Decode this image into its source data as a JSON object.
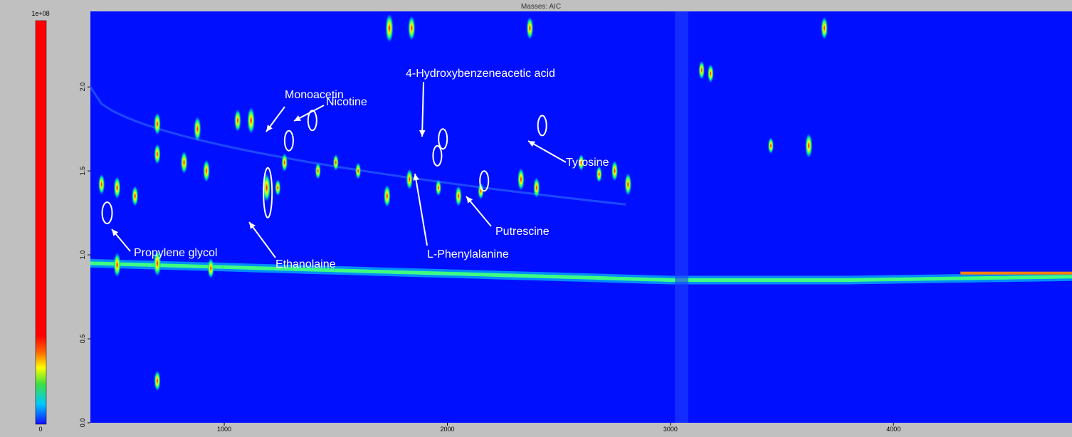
{
  "chart_data": {
    "type": "heatmap",
    "title": "Masses: AIC",
    "xlabel": "",
    "ylabel": "",
    "xlim": [
      400,
      4800
    ],
    "ylim": [
      0,
      2.45
    ],
    "x_ticks": [
      {
        "value": 1000,
        "label": "1000"
      },
      {
        "value": 2000,
        "label": "2000"
      },
      {
        "value": 3000,
        "label": "3000"
      },
      {
        "value": 4000,
        "label": "4000"
      }
    ],
    "y_ticks": [
      {
        "value": 0.0,
        "label": "0.0"
      },
      {
        "value": 0.5,
        "label": "0.5"
      },
      {
        "value": 1.0,
        "label": "1.0"
      },
      {
        "value": 1.5,
        "label": "1.5"
      },
      {
        "value": 2.0,
        "label": "2.0"
      }
    ],
    "colorbar": {
      "min_label": "0",
      "max_label": "1e+08",
      "colors": [
        "#1010ff",
        "#00c8ff",
        "#40e040",
        "#ffff00",
        "#ff6000",
        "#ff0000"
      ]
    },
    "background_color": "#0010ff",
    "grid": false,
    "annotations": [
      {
        "label": "Propylene glycol",
        "x": 475,
        "y": 1.25
      },
      {
        "label": "Ethanolaine",
        "x": 1195,
        "y": 1.37
      },
      {
        "label": "Monoacetin",
        "x": 1290,
        "y": 1.68
      },
      {
        "label": "Nicotine",
        "x": 1395,
        "y": 1.8
      },
      {
        "label": "4-Hydroxybenzeneacetic acid",
        "x": 1980,
        "y": 1.69
      },
      {
        "label": "L-Phenylalanine",
        "x": 1955,
        "y": 1.59
      },
      {
        "label": "Putrescine",
        "x": 2165,
        "y": 1.44
      },
      {
        "label": "Tyrosine",
        "x": 2425,
        "y": 1.77
      }
    ],
    "peaks": [
      {
        "x": 1740,
        "y": 2.35,
        "i": 1.0
      },
      {
        "x": 1840,
        "y": 2.35,
        "i": 0.8
      },
      {
        "x": 2370,
        "y": 2.35,
        "i": 0.7
      },
      {
        "x": 3690,
        "y": 2.35,
        "i": 0.7
      },
      {
        "x": 1120,
        "y": 1.8,
        "i": 0.9
      },
      {
        "x": 1190,
        "y": 1.4,
        "i": 1.0
      },
      {
        "x": 1060,
        "y": 1.8,
        "i": 0.7
      },
      {
        "x": 880,
        "y": 1.75,
        "i": 0.8
      },
      {
        "x": 700,
        "y": 1.78,
        "i": 0.7
      },
      {
        "x": 700,
        "y": 1.6,
        "i": 0.6
      },
      {
        "x": 820,
        "y": 1.55,
        "i": 0.7
      },
      {
        "x": 920,
        "y": 1.5,
        "i": 0.7
      },
      {
        "x": 1270,
        "y": 1.55,
        "i": 0.5
      },
      {
        "x": 1730,
        "y": 1.35,
        "i": 0.7
      },
      {
        "x": 1830,
        "y": 1.45,
        "i": 0.6
      },
      {
        "x": 2050,
        "y": 1.35,
        "i": 0.6
      },
      {
        "x": 2330,
        "y": 1.45,
        "i": 0.7
      },
      {
        "x": 2400,
        "y": 1.4,
        "i": 0.6
      },
      {
        "x": 2750,
        "y": 1.5,
        "i": 0.6
      },
      {
        "x": 2810,
        "y": 1.42,
        "i": 0.7
      },
      {
        "x": 3620,
        "y": 1.65,
        "i": 0.8
      },
      {
        "x": 3450,
        "y": 1.65,
        "i": 0.4
      },
      {
        "x": 3180,
        "y": 2.08,
        "i": 0.5
      },
      {
        "x": 3140,
        "y": 2.1,
        "i": 0.5
      },
      {
        "x": 450,
        "y": 1.42,
        "i": 0.6
      },
      {
        "x": 520,
        "y": 1.4,
        "i": 0.7
      },
      {
        "x": 600,
        "y": 1.35,
        "i": 0.6
      },
      {
        "x": 700,
        "y": 0.95,
        "i": 0.9
      },
      {
        "x": 520,
        "y": 0.94,
        "i": 0.8
      },
      {
        "x": 940,
        "y": 0.92,
        "i": 0.6
      },
      {
        "x": 700,
        "y": 0.25,
        "i": 0.6
      },
      {
        "x": 1240,
        "y": 1.4,
        "i": 0.4
      },
      {
        "x": 1420,
        "y": 1.5,
        "i": 0.4
      },
      {
        "x": 1600,
        "y": 1.5,
        "i": 0.4
      },
      {
        "x": 1500,
        "y": 1.55,
        "i": 0.4
      },
      {
        "x": 1960,
        "y": 1.4,
        "i": 0.4
      },
      {
        "x": 2150,
        "y": 1.38,
        "i": 0.4
      },
      {
        "x": 2600,
        "y": 1.55,
        "i": 0.4
      },
      {
        "x": 2680,
        "y": 1.48,
        "i": 0.4
      }
    ]
  }
}
